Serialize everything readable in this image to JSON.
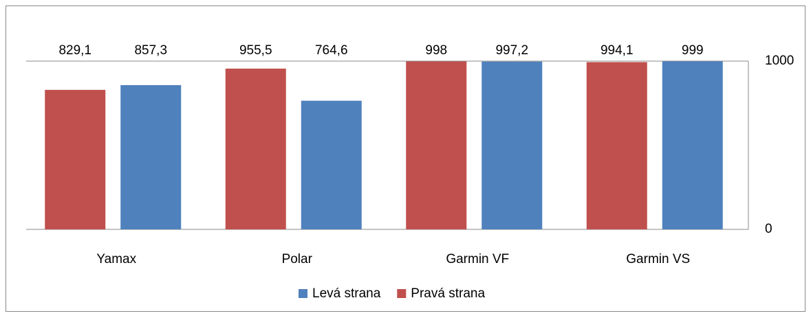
{
  "chart_data": {
    "type": "bar",
    "categories": [
      "Yamax",
      "Polar",
      "Garmin VF",
      "Garmin VS"
    ],
    "series": [
      {
        "name": "Pravá strana",
        "color": "#c0504d",
        "values": [
          829.1,
          955.5,
          998,
          994.1
        ],
        "value_labels": [
          "829,1",
          "955,5",
          "998",
          "994,1"
        ]
      },
      {
        "name": "Levá strana",
        "color": "#4f81bd",
        "values": [
          857.3,
          764.6,
          997.2,
          999
        ],
        "value_labels": [
          "857,3",
          "764,6",
          "997,2",
          "999"
        ]
      }
    ],
    "ylim": [
      0,
      1000
    ],
    "yticks": [
      0,
      1000
    ],
    "grid": true,
    "y_axis_side": "right",
    "legend": "bottom"
  }
}
